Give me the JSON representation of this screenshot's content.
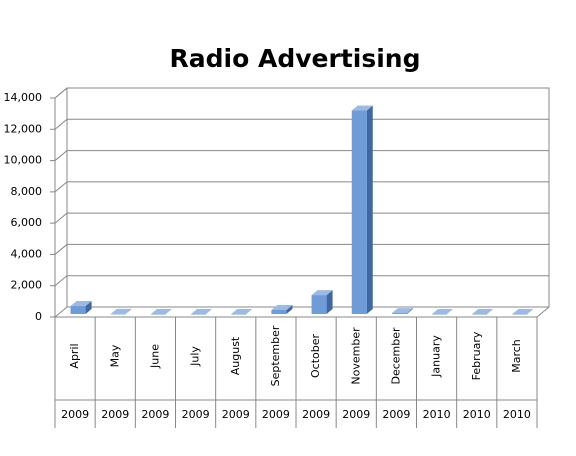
{
  "chart_data": {
    "type": "bar3d",
    "title": "Radio Advertising",
    "categories": [
      "April",
      "May",
      "June",
      "July",
      "August",
      "September",
      "October",
      "November",
      "December",
      "January",
      "February",
      "March"
    ],
    "years": [
      "2009",
      "2009",
      "2009",
      "2009",
      "2009",
      "2009",
      "2009",
      "2009",
      "2009",
      "2010",
      "2010",
      "2010"
    ],
    "values": [
      700,
      200,
      0,
      0,
      0,
      450,
      1400,
      13200,
      250,
      0,
      0,
      0
    ],
    "color": "#6f9bd6",
    "ylim": [
      0,
      14000
    ],
    "yticks": [
      0,
      {
        "value": 2000,
        "label": "2,000"
      },
      {
        "value": 4000,
        "label": "4,000"
      },
      {
        "value": 6000,
        "label": "6,000"
      },
      {
        "value": 8000,
        "label": "8,000"
      },
      {
        "value": 10000,
        "label": "10,000"
      },
      {
        "value": 12000,
        "label": "12,000"
      },
      {
        "value": 14000,
        "label": "14,000"
      }
    ],
    "grid": true
  }
}
